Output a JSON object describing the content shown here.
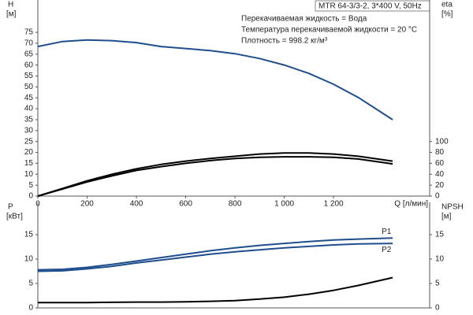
{
  "info": {
    "model": "MTR 64-3/3-2, 3*400 V, 50Hz",
    "lines": [
      "Перекачиваемая жидкость = Вода",
      "Температура перекачиваемой жидкости = 20 °C",
      "Плотность = 998.2 кг/м³"
    ]
  },
  "chart_data": [
    {
      "type": "line",
      "ylabel": "H",
      "yunit": "[м]",
      "y2label": "eta",
      "y2unit": "[%]",
      "xlabel": "Q [л/мин]",
      "x": [
        0,
        100,
        200,
        300,
        400,
        500,
        600,
        700,
        800,
        900,
        1000,
        1100,
        1200,
        1300,
        1440
      ],
      "xlim": [
        0,
        1590
      ],
      "xticks": [
        0,
        200,
        400,
        600,
        800,
        {
          "value": 1000,
          "label": "1 000"
        },
        {
          "value": 1200,
          "label": "1 200"
        }
      ],
      "ylim": [
        0,
        88
      ],
      "yticks": [
        0,
        5,
        10,
        15,
        20,
        25,
        30,
        35,
        40,
        45,
        50,
        55,
        60,
        65,
        70,
        75
      ],
      "y2lim": [
        0,
        352
      ],
      "y2ticks": [
        0,
        20,
        40,
        60,
        80,
        100
      ],
      "series": [
        {
          "color": "#1f4e8c",
          "values": [
            68.5,
            70.8,
            71.5,
            71.2,
            70.3,
            68.5,
            67.6,
            66.6,
            65.2,
            63,
            60,
            56.2,
            51.2,
            45.2,
            35
          ]
        },
        {
          "color": "#000000",
          "axis": "y2",
          "values": [
            0,
            14,
            28,
            40,
            50,
            58,
            64,
            69,
            73,
            77,
            79,
            79,
            77,
            73,
            64
          ]
        },
        {
          "color": "#000000",
          "axis": "y2",
          "values": [
            0,
            13,
            26,
            37,
            47,
            54,
            60,
            65,
            69,
            71,
            72,
            72,
            71,
            68,
            59
          ]
        }
      ]
    },
    {
      "type": "line",
      "ylabel": "P",
      "yunit": "[кВт]",
      "y2label": "NPSH",
      "y2unit": "[м]",
      "x": [
        0,
        100,
        200,
        300,
        400,
        500,
        600,
        700,
        800,
        900,
        1000,
        1100,
        1200,
        1300,
        1440
      ],
      "xlim": [
        0,
        1590
      ],
      "ylim": [
        0,
        20.8
      ],
      "yticks": [
        0,
        5,
        10,
        15
      ],
      "y2lim": [
        0,
        20.8
      ],
      "y2ticks": [
        0,
        5,
        10,
        15
      ],
      "series": [
        {
          "name": "P1",
          "color": "#1f4e8c",
          "values": [
            7.8,
            7.9,
            8.3,
            8.9,
            9.6,
            10.3,
            11,
            11.7,
            12.3,
            12.8,
            13.2,
            13.6,
            13.9,
            14.1,
            14.3
          ]
        },
        {
          "name": "P2",
          "color": "#1f4e8c",
          "values": [
            7.5,
            7.6,
            8,
            8.5,
            9.2,
            9.8,
            10.4,
            11,
            11.5,
            11.9,
            12.3,
            12.6,
            12.9,
            13.1,
            13.2
          ]
        },
        {
          "color": "#000000",
          "axis": "y2",
          "values": [
            1.1,
            1.1,
            1.1,
            1.15,
            1.2,
            1.2,
            1.25,
            1.35,
            1.5,
            1.8,
            2.2,
            2.8,
            3.6,
            4.6,
            6.2
          ]
        }
      ]
    }
  ]
}
